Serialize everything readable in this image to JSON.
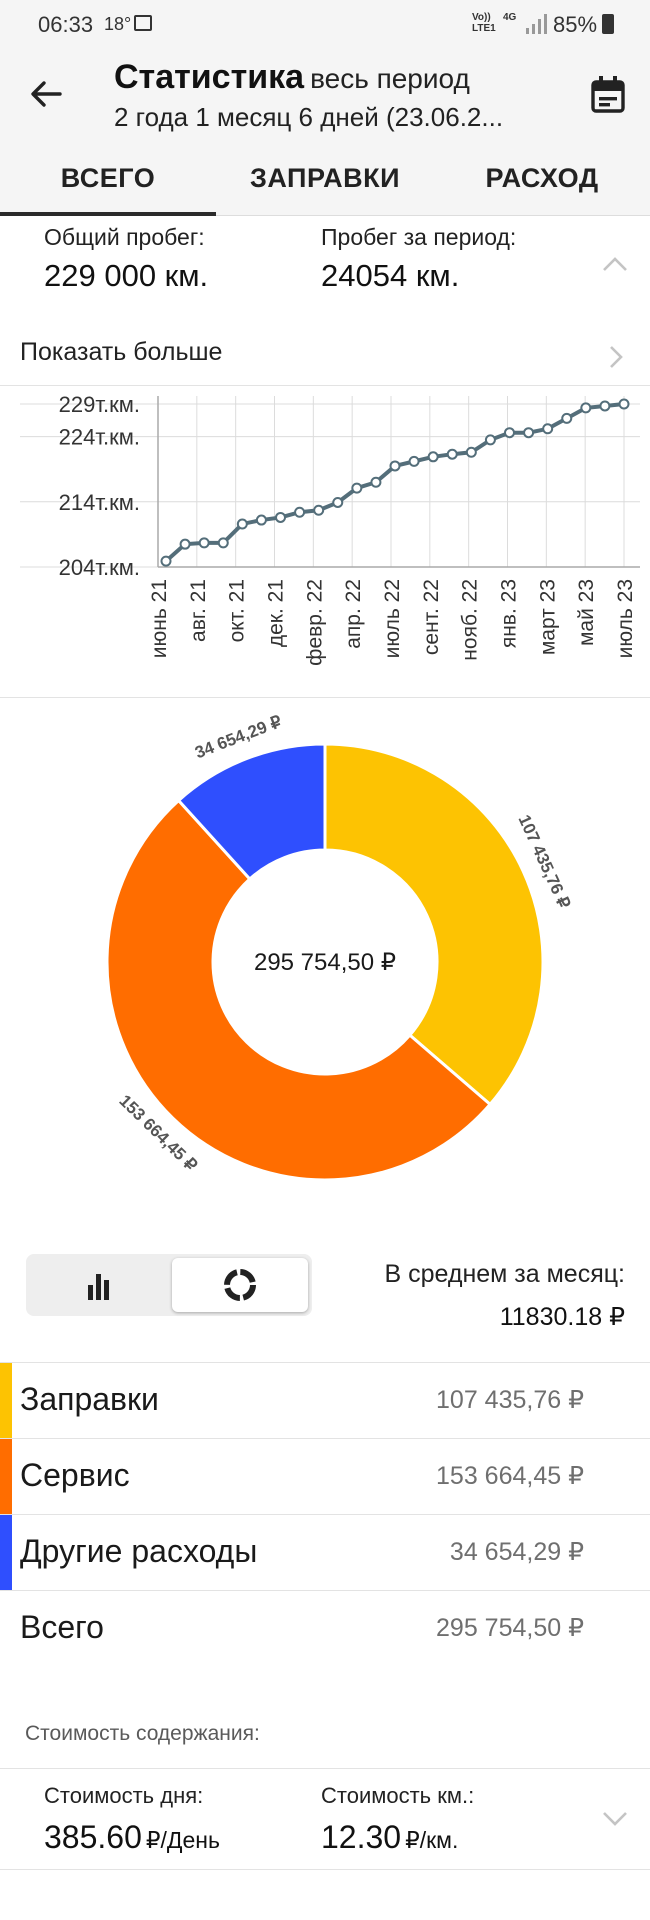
{
  "status_bar": {
    "time": "06:33",
    "temp": "18°",
    "network_top": "Vo))",
    "network_bottom": "LTE1",
    "network_4g": "4G",
    "battery": "85%"
  },
  "toolbar": {
    "title": "Статистика",
    "title_suffix": "весь период",
    "subtitle": "2 года 1 месяц 6 дней (23.06.2..."
  },
  "tabs": [
    {
      "label": "ВСЕГО",
      "active": true
    },
    {
      "label": "ЗАПРАВКИ",
      "active": false
    },
    {
      "label": "РАСХОД",
      "active": false
    }
  ],
  "mileage": {
    "total_label": "Общий пробег:",
    "total_value": "229 000 км.",
    "period_label": "Пробег за период:",
    "period_value": "24054 км."
  },
  "show_more": "Показать больше",
  "chart_data": [
    {
      "type": "line",
      "y_tick_labels": [
        "229т.км.",
        "224т.км.",
        "214т.км.",
        "204т.км."
      ],
      "y_ticks": [
        229,
        224,
        214,
        204
      ],
      "ylim": [
        204,
        229
      ],
      "x_tick_labels": [
        "июнь 21",
        "авг. 21",
        "окт. 21",
        "дек. 21",
        "февр. 22",
        "апр. 22",
        "июль 22",
        "сент. 22",
        "нояб. 22",
        "янв. 23",
        "март 23",
        "май 23",
        "июль 23"
      ],
      "grid": true,
      "color": "#546e7a",
      "series": [
        {
          "values": [
            204.9,
            207.5,
            207.7,
            207.7,
            210.6,
            211.2,
            211.6,
            212.4,
            212.7,
            213.9,
            216.1,
            217.0,
            219.5,
            220.2,
            220.9,
            221.3,
            221.6,
            223.5,
            224.6,
            224.6,
            225.2,
            226.8,
            228.4,
            228.7,
            229.0
          ]
        }
      ]
    },
    {
      "type": "pie",
      "variant": "donut",
      "center_label": "295 754,50 ₽",
      "labels": [
        "Заправки",
        "Сервис",
        "Другие расходы"
      ],
      "values": [
        107435.76,
        153664.45,
        34654.29
      ],
      "value_labels": [
        "107 435,76 ₽",
        "153 664,45 ₽",
        "34 654,29 ₽"
      ],
      "colors": [
        "#fdc302",
        "#ff6d00",
        "#2f4ffe"
      ]
    }
  ],
  "view_toggle": {
    "bar": "bar-chart-icon",
    "donut": "donut-icon",
    "selected": "donut"
  },
  "average": {
    "label": "В среднем за месяц:",
    "value": "11830.18 ₽"
  },
  "legend": [
    {
      "name": "Заправки",
      "amount": "107 435,76 ₽",
      "color": "#fdc302"
    },
    {
      "name": "Сервис",
      "amount": "153 664,45 ₽",
      "color": "#ff6d00"
    },
    {
      "name": "Другие расходы",
      "amount": "34 654,29 ₽",
      "color": "#2f4ffe"
    }
  ],
  "total": {
    "name": "Всего",
    "amount": "295 754,50 ₽"
  },
  "upkeep": {
    "title": "Стоимость содержания:",
    "day_label": "Стоимость дня:",
    "day_value": "385.60",
    "day_unit": "₽/День",
    "km_label": "Стоимость км.:",
    "km_value": "12.30",
    "km_unit": "₽/км."
  }
}
